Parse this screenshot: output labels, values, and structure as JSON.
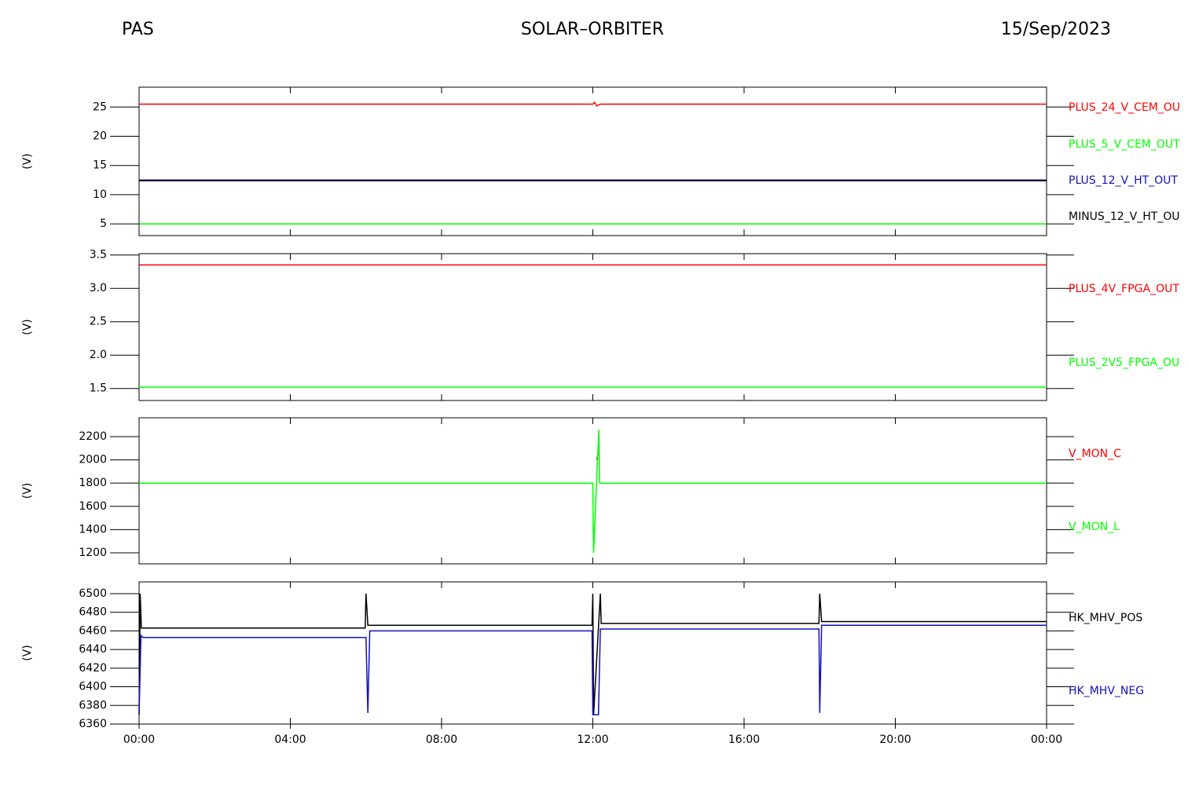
{
  "header": {
    "left": "PAS",
    "title": "SOLAR–ORBITER",
    "date": "15/Sep/2023"
  },
  "chart_data": [
    {
      "type": "line",
      "ylabel": "(V)",
      "xlim": [
        0,
        24
      ],
      "ylim": [
        3,
        28.4
      ],
      "yticks": [
        5,
        10,
        15,
        20,
        25
      ],
      "legend_position": "right",
      "series": [
        {
          "name": "PLUS_24_V_CEM_OU",
          "color": "#ff0000",
          "x": [
            0,
            12.0,
            12.05,
            12.1,
            12.2,
            24
          ],
          "values": [
            25.5,
            25.5,
            25.8,
            25.2,
            25.5,
            25.5
          ]
        },
        {
          "name": "PLUS_5_V_CEM_OUT",
          "color": "#00ff00",
          "x": [
            0,
            24
          ],
          "values": [
            5,
            5
          ]
        },
        {
          "name": "PLUS_12_V_HT_OUT",
          "color": "#1010c0",
          "x": [
            0,
            24
          ],
          "values": [
            12.5,
            12.5
          ]
        },
        {
          "name": "MINUS_12_V_HT_OU",
          "color": "#000000",
          "x": [
            0,
            24
          ],
          "values": [
            12.4,
            12.4
          ]
        }
      ]
    },
    {
      "type": "line",
      "ylabel": "(V)",
      "xlim": [
        0,
        24
      ],
      "ylim": [
        1.32,
        3.52
      ],
      "yticks": [
        1.5,
        {
          "value": 2,
          "label": "2.0"
        },
        2.5,
        {
          "value": 3,
          "label": "3.0"
        },
        3.5
      ],
      "legend_position": "right",
      "series": [
        {
          "name": "PLUS_4V_FPGA_OUT",
          "color": "#ff0000",
          "x": [
            0,
            24
          ],
          "values": [
            3.35,
            3.35
          ]
        },
        {
          "name": "PLUS_2V5_FPGA_OU",
          "color": "#00ff00",
          "x": [
            0,
            24
          ],
          "values": [
            1.52,
            1.52
          ]
        }
      ]
    },
    {
      "type": "line",
      "ylabel": "(V)",
      "xlim": [
        0,
        24
      ],
      "ylim": [
        1105,
        2362
      ],
      "yticks": [
        1200,
        1400,
        1600,
        1800,
        2000,
        2200
      ],
      "legend_position": "right",
      "series": [
        {
          "name": "V_MON_C",
          "color": "#ff0000",
          "x": [
            12.1,
            12.15
          ],
          "values": [
            2000,
            2060
          ]
        },
        {
          "name": "V_MON_L",
          "color": "#00ff00",
          "x": [
            0,
            12.0,
            12.02,
            12.16,
            12.18,
            24
          ],
          "values": [
            1800,
            1800,
            1200,
            2260,
            1800,
            1800
          ]
        }
      ]
    },
    {
      "type": "line",
      "ylabel": "(V)",
      "xlim": [
        0,
        24
      ],
      "ylim": [
        6360,
        6512.6
      ],
      "yticks": [
        6360,
        6380,
        6400,
        6420,
        6440,
        6460,
        6480,
        6500
      ],
      "legend_position": "right",
      "xticks": [
        {
          "value": 0,
          "label": "00:00"
        },
        {
          "value": 4,
          "label": "04:00"
        },
        {
          "value": 8,
          "label": "08:00"
        },
        {
          "value": 12,
          "label": "12:00"
        },
        {
          "value": 16,
          "label": "16:00"
        },
        {
          "value": 20,
          "label": "20:00"
        },
        {
          "value": 24,
          "label": "00:00"
        }
      ],
      "series": [
        {
          "name": "HK_MHV_POS",
          "color": "#000000",
          "x": [
            0,
            0.03,
            0.06,
            5.98,
            6.0,
            6.05,
            11.98,
            12.0,
            12.02,
            12.2,
            12.22,
            17.98,
            18.0,
            18.05,
            24
          ],
          "values": [
            6370,
            6500,
            6463,
            6463,
            6500,
            6466,
            6466,
            6500,
            6370,
            6500,
            6468,
            6468,
            6500,
            6470,
            6470
          ]
        },
        {
          "name": "HK_MHV_NEG",
          "color": "#1010c0",
          "x": [
            0,
            0.05,
            0.1,
            5.98,
            6.0,
            6.05,
            6.1,
            11.98,
            12.0,
            12.15,
            12.2,
            17.98,
            18.0,
            18.05,
            24
          ],
          "values": [
            6370,
            6455,
            6453,
            6453,
            6453,
            6372,
            6460,
            6460,
            6370,
            6370,
            6462,
            6462,
            6372,
            6466,
            6466
          ]
        }
      ]
    }
  ]
}
